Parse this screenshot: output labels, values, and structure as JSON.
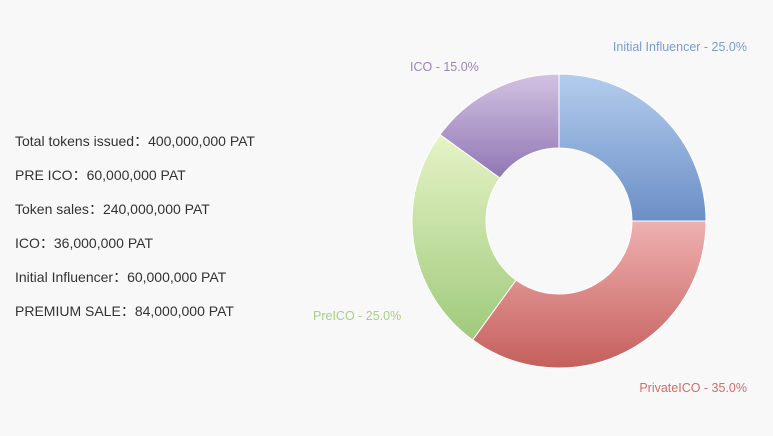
{
  "token_info": [
    {
      "label": "Total tokens issued",
      "value": "400,000,000 PAT"
    },
    {
      "label": "PRE ICO",
      "value": "60,000,000 PAT"
    },
    {
      "label": "Token sales",
      "value": "240,000,000 PAT"
    },
    {
      "label": "ICO",
      "value": "36,000,000 PAT"
    },
    {
      "label": "Initial Influencer",
      "value": "60,000,000 PAT"
    },
    {
      "label": "PREMIUM SALE",
      "value": "84,000,000 PAT"
    }
  ],
  "separator": "：",
  "chart_data": {
    "type": "pie",
    "donut": true,
    "slices": [
      {
        "label": "Initial Influencer - 25.0%",
        "value": 25.0,
        "color": "#7a9bd0",
        "light": "#b4cdee",
        "dark": "#6b8ec6"
      },
      {
        "label": "PrivateICO - 35.0%",
        "value": 35.0,
        "color": "#cf6e6c",
        "light": "#efb1b1",
        "dark": "#c45f5c"
      },
      {
        "label": "PreICO - 25.0%",
        "value": 25.0,
        "color": "#a9cf83",
        "light": "#e6f3c6",
        "dark": "#9fca7c"
      },
      {
        "label": "ICO - 15.0%",
        "value": 15.0,
        "color": "#9d84bd",
        "light": "#d3c2e3",
        "dark": "#8f77b3"
      }
    ]
  }
}
